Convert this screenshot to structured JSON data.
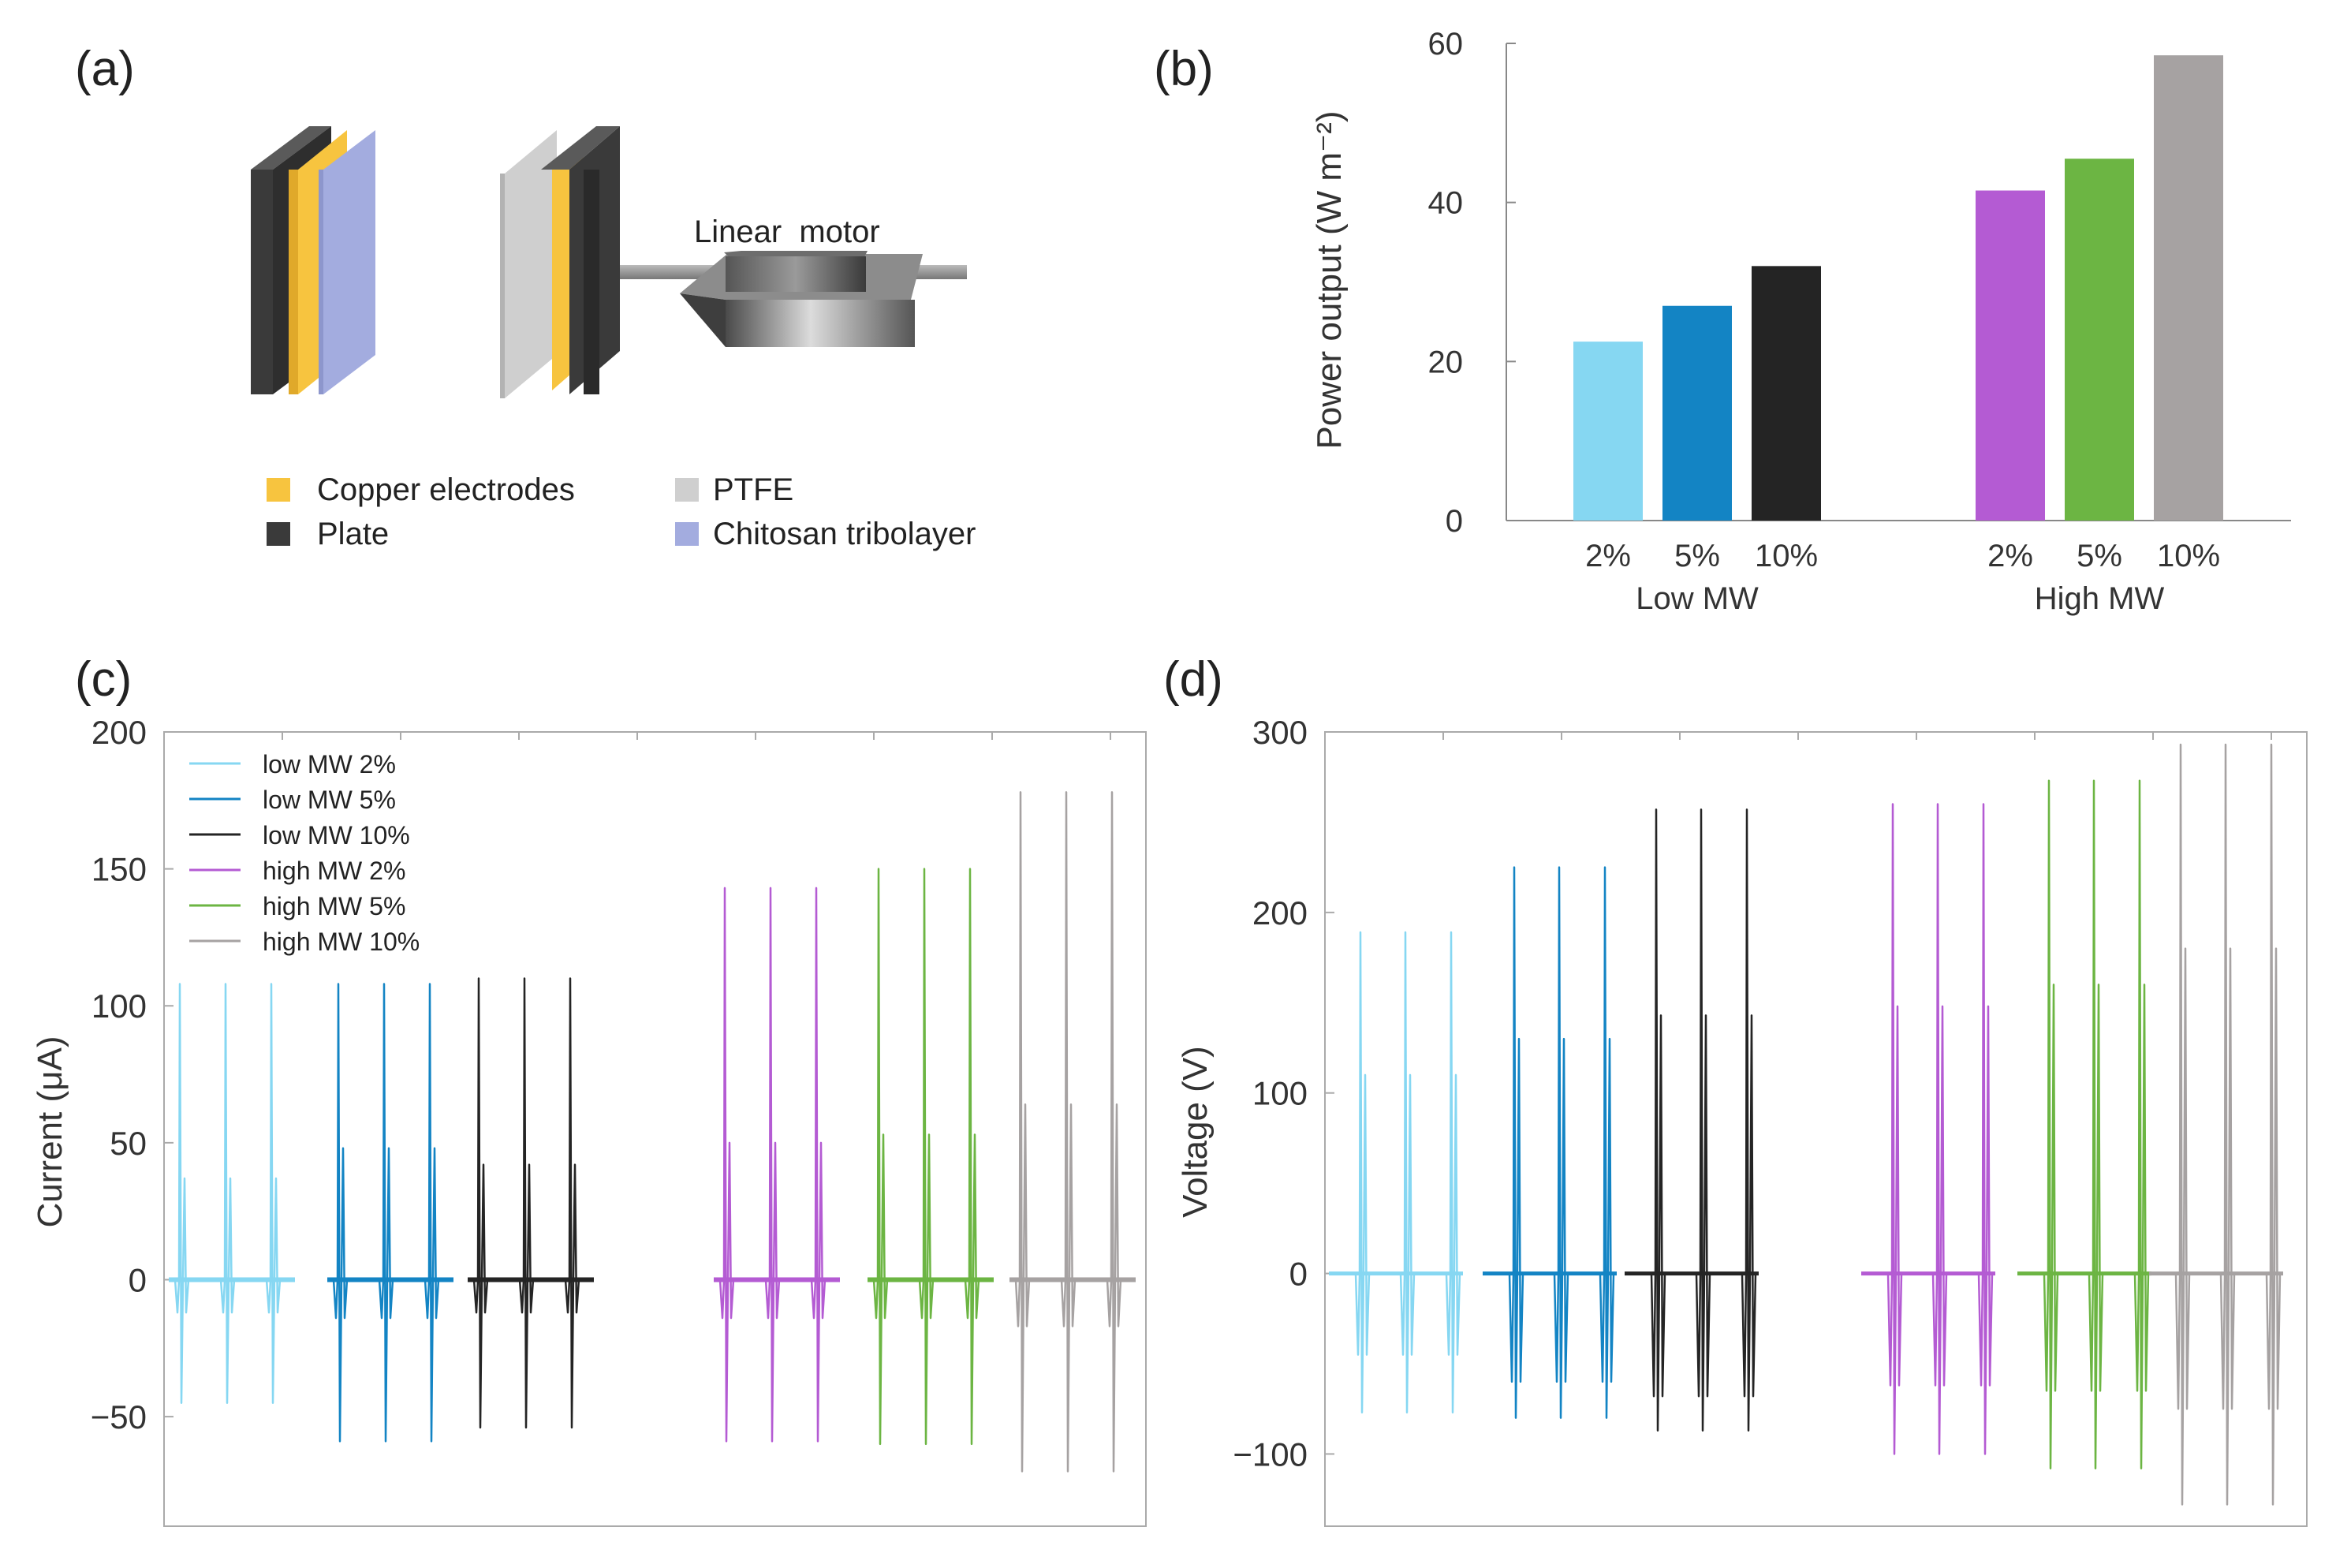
{
  "colors": {
    "copper": "#f7c43f",
    "plate": "#3a3a3a",
    "ptfe": "#c8c8c8",
    "chitosan": "#a3acdf",
    "low2": "#86d7f2",
    "low5": "#1384c4",
    "low10": "#242424",
    "high2": "#b45bd3",
    "high5": "#6cb543",
    "high10": "#a6a2a2",
    "axis": "#888888",
    "text": "#333333"
  },
  "panel_a": {
    "label": "(a)",
    "motor_label": "Linear  motor",
    "legend": [
      {
        "text": "Copper electrodes",
        "color_key": "copper"
      },
      {
        "text": "Plate",
        "color_key": "plate"
      },
      {
        "text": "PTFE",
        "color_key": "ptfe"
      },
      {
        "text": "Chitosan tribolayer",
        "color_key": "chitosan"
      }
    ]
  },
  "chart_data": [
    {
      "panel": "(b)",
      "type": "bar",
      "title": "",
      "ylabel": "Power output (W m⁻²)",
      "ylim": [
        0,
        60
      ],
      "yticks": [
        0,
        20,
        40,
        60
      ],
      "groups": [
        {
          "name": "Low MW",
          "categories": [
            "2%",
            "5%",
            "10%"
          ],
          "values": [
            22.5,
            27,
            32
          ],
          "color_keys": [
            "low2",
            "low5",
            "low10"
          ]
        },
        {
          "name": "High MW",
          "categories": [
            "2%",
            "5%",
            "10%"
          ],
          "values": [
            41.5,
            45.5,
            58.5
          ],
          "color_keys": [
            "high2",
            "high5",
            "high10"
          ]
        }
      ]
    },
    {
      "panel": "(c)",
      "type": "line",
      "ylabel": "Current (μA)",
      "ylim": [
        -90,
        200
      ],
      "yticks": [
        -50,
        0,
        50,
        100,
        150,
        200
      ],
      "ytick_labels": [
        "−50",
        "0",
        "50",
        "100",
        "150",
        "200"
      ],
      "legend": [
        "low MW 2%",
        "low MW 5%",
        "low MW 10%",
        "high MW 2%",
        "high MW 5%",
        "high MW 10%"
      ],
      "series": [
        {
          "name": "low MW 2%",
          "color_key": "low2",
          "peak": 108,
          "side": 37,
          "trough": -45,
          "dip": -12
        },
        {
          "name": "low MW 5%",
          "color_key": "low5",
          "peak": 108,
          "side": 48,
          "trough": -59,
          "dip": -14
        },
        {
          "name": "low MW 10%",
          "color_key": "low10",
          "peak": 110,
          "side": 42,
          "trough": -54,
          "dip": -12
        },
        {
          "name": "high MW 2%",
          "color_key": "high2",
          "peak": 143,
          "side": 50,
          "trough": -59,
          "dip": -14
        },
        {
          "name": "high MW 5%",
          "color_key": "high5",
          "peak": 150,
          "side": 53,
          "trough": -60,
          "dip": -14
        },
        {
          "name": "high MW 10%",
          "color_key": "high10",
          "peak": 178,
          "side": 64,
          "trough": -70,
          "dip": -17
        }
      ]
    },
    {
      "panel": "(d)",
      "type": "line",
      "ylabel": "Voltage (V)",
      "ylim": [
        -140,
        300
      ],
      "yticks": [
        -100,
        0,
        100,
        200,
        300
      ],
      "ytick_labels": [
        "−100",
        "0",
        "100",
        "200",
        "300"
      ],
      "series": [
        {
          "name": "low MW 2%",
          "color_key": "low2",
          "peak": 189,
          "side": 110,
          "trough": -77,
          "dip": -45
        },
        {
          "name": "low MW 5%",
          "color_key": "low5",
          "peak": 225,
          "side": 130,
          "trough": -80,
          "dip": -60
        },
        {
          "name": "low MW 10%",
          "color_key": "low10",
          "peak": 257,
          "side": 143,
          "trough": -87,
          "dip": -68
        },
        {
          "name": "high MW 2%",
          "color_key": "high2",
          "peak": 260,
          "side": 148,
          "trough": -100,
          "dip": -62
        },
        {
          "name": "high MW 5%",
          "color_key": "high5",
          "peak": 273,
          "side": 160,
          "trough": -108,
          "dip": -65
        },
        {
          "name": "high MW 10%",
          "color_key": "high10",
          "peak": 293,
          "side": 180,
          "trough": -128,
          "dip": -75
        }
      ]
    }
  ]
}
